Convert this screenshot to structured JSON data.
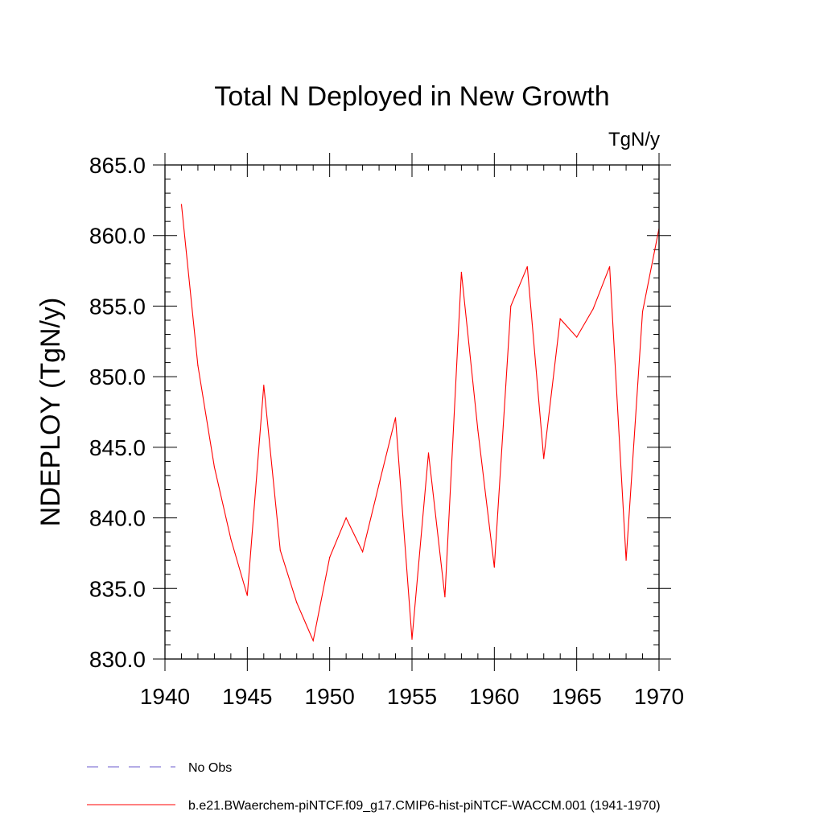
{
  "chart_data": {
    "type": "line",
    "title": "Total N Deployed in New Growth",
    "units_label": "TgN/y",
    "xlabel": "",
    "ylabel": "NDEPLOY  (TgN/y)",
    "xlim": [
      1940,
      1970
    ],
    "ylim": [
      830,
      865
    ],
    "x_ticks": [
      1940,
      1945,
      1950,
      1955,
      1960,
      1965,
      1970
    ],
    "x_tick_labels": [
      "1940",
      "1945",
      "1950",
      "1955",
      "1960",
      "1965",
      "1970"
    ],
    "y_ticks": [
      830,
      835,
      840,
      845,
      850,
      855,
      860,
      865
    ],
    "y_tick_labels": [
      "830.0",
      "835.0",
      "840.0",
      "845.0",
      "850.0",
      "855.0",
      "860.0",
      "865.0"
    ],
    "grid": false,
    "legend_position": "bottom-left",
    "series": [
      {
        "name": "b.e21.BWaerchem-piNTCF.f09_g17.CMIP6-hist-piNTCF-WACCM.001 (1941-1970)",
        "color": "#ff0000",
        "style": "solid",
        "x": [
          1941,
          1942,
          1943,
          1944,
          1945,
          1946,
          1947,
          1948,
          1949,
          1950,
          1951,
          1952,
          1953,
          1954,
          1955,
          1956,
          1957,
          1958,
          1959,
          1960,
          1961,
          1962,
          1963,
          1964,
          1965,
          1966,
          1967,
          1968,
          1969,
          1970
        ],
        "y": [
          862.2,
          850.8,
          843.6,
          838.5,
          834.5,
          849.4,
          837.7,
          834.0,
          831.3,
          837.2,
          840.0,
          837.6,
          842.4,
          847.1,
          831.4,
          844.6,
          834.4,
          857.4,
          846.2,
          836.5,
          855.0,
          857.8,
          844.2,
          854.1,
          852.8,
          854.8,
          857.8,
          837.0,
          854.6,
          860.5
        ]
      }
    ],
    "legend": [
      {
        "label": "No Obs",
        "color": "#6a5acd",
        "style": "dashed"
      },
      {
        "label": "b.e21.BWaerchem-piNTCF.f09_g17.CMIP6-hist-piNTCF-WACCM.001 (1941-1970)",
        "color": "#ff0000",
        "style": "solid"
      }
    ]
  }
}
